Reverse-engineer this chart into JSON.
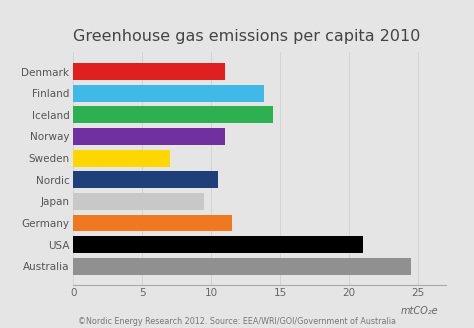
{
  "title": "Greenhouse gas emissions per capita 2010",
  "categories": [
    "Denmark",
    "Finland",
    "Iceland",
    "Norway",
    "Sweden",
    "Nordic",
    "Japan",
    "Germany",
    "USA",
    "Australia"
  ],
  "values": [
    11.0,
    13.8,
    14.5,
    11.0,
    7.0,
    10.5,
    9.5,
    11.5,
    21.0,
    24.5
  ],
  "colors": [
    "#e02020",
    "#40b8e8",
    "#2db050",
    "#7030a0",
    "#ffd700",
    "#1e3f7a",
    "#c8c8c8",
    "#f07820",
    "#000000",
    "#909090"
  ],
  "xlim": [
    0,
    27
  ],
  "xticks": [
    0,
    5,
    10,
    15,
    20,
    25
  ],
  "xlabel": "mtCO₂e",
  "footer": "©Nordic Energy Research 2012. Source: EEA/WRI/GOI/Government of Australia",
  "background_color": "#e5e5e5",
  "title_fontsize": 11.5,
  "label_fontsize": 7.5,
  "tick_fontsize": 7.5,
  "footer_fontsize": 5.8
}
